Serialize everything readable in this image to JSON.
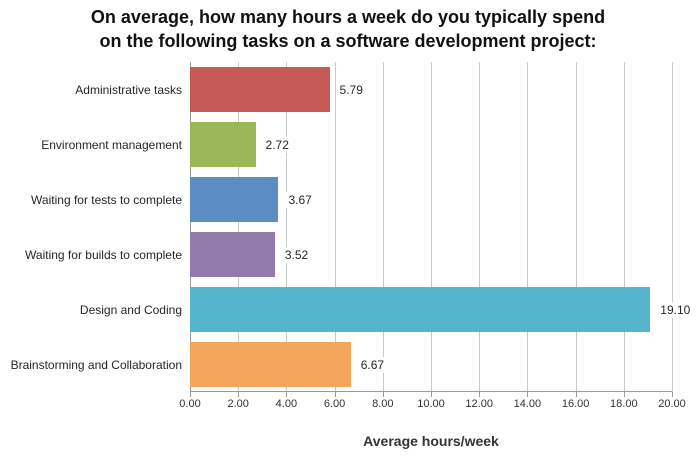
{
  "title": {
    "line1": "On average, how many hours a week do you typically spend",
    "line2": "on the following tasks on a software development project:"
  },
  "chart_data": {
    "type": "bar",
    "orientation": "horizontal",
    "title": "On average, how many hours a week do you typically spend on the following tasks on a software development project:",
    "categories": [
      "Administrative tasks",
      "Environment management",
      "Waiting for tests to complete",
      "Waiting for builds to complete",
      "Design and Coding",
      "Brainstorming and Collaboration"
    ],
    "values": [
      5.79,
      2.72,
      3.67,
      3.52,
      19.1,
      6.67
    ],
    "value_labels": [
      "5.79",
      "2.72",
      "3.67",
      "3.52",
      "19.10",
      "6.67"
    ],
    "bar_colors": [
      "#c55a57",
      "#9ab859",
      "#5a8dc1",
      "#927aad",
      "#54b5cd",
      "#f4a55c"
    ],
    "xlabel": "Average hours/week",
    "xlim": [
      0,
      20
    ],
    "x_tick_values": [
      0,
      2,
      4,
      6,
      8,
      10,
      12,
      14,
      16,
      18,
      20
    ],
    "x_tick_labels": [
      "0.00",
      "2.00",
      "4.00",
      "6.00",
      "8.00",
      "10.00",
      "12.00",
      "14.00",
      "16.00",
      "18.00",
      "20.00"
    ],
    "grid": true,
    "legend": false,
    "grid_color": "#c9c9c9",
    "axis_color": "#999999"
  }
}
